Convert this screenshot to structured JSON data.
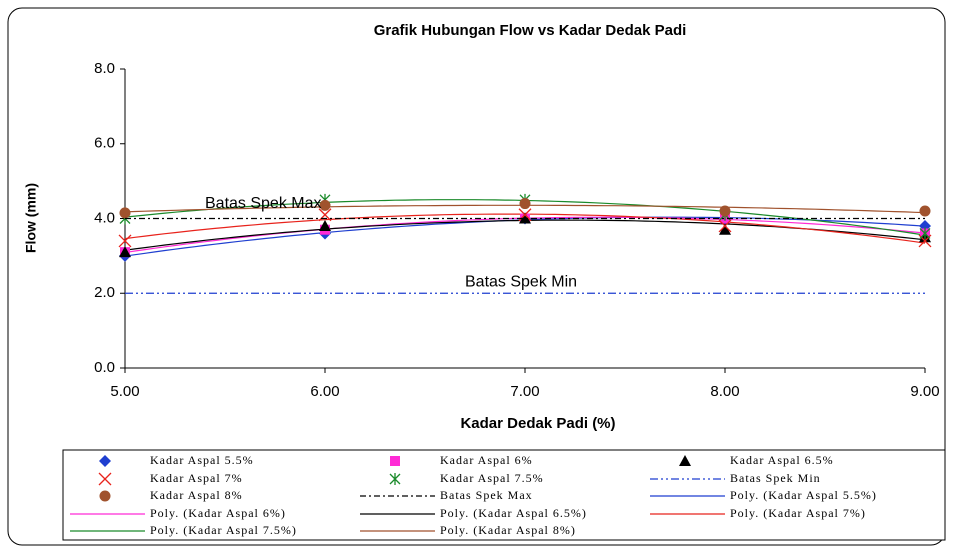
{
  "chart_data": {
    "type": "line",
    "title": "Grafik Hubungan Flow vs Kadar Dedak Padi",
    "xlabel": "Kadar Dedak Padi (%)",
    "ylabel": "Flow (mm)",
    "x": [
      5,
      6,
      7,
      8,
      9
    ],
    "xlim": [
      5,
      9
    ],
    "xticks": [
      {
        "value": 5,
        "label": "5.00"
      },
      {
        "value": 6,
        "label": "6.00"
      },
      {
        "value": 7,
        "label": "7.00"
      },
      {
        "value": 8,
        "label": "8.00"
      },
      {
        "value": 9,
        "label": "9.00"
      }
    ],
    "ylim": [
      0,
      8
    ],
    "yticks": [
      {
        "value": 0,
        "label": "0.0"
      },
      {
        "value": 2,
        "label": "2.0"
      },
      {
        "value": 4,
        "label": "4.0"
      },
      {
        "value": 6,
        "label": "6.0"
      },
      {
        "value": 8,
        "label": "8.0"
      }
    ],
    "grid": false,
    "annotations": [
      {
        "text": "Batas Spek Max",
        "x": 5.4,
        "y": 4.4
      },
      {
        "text": "Batas Spek Min",
        "x": 6.7,
        "y": 2.3
      }
    ],
    "series": [
      {
        "name": "Kadar Aspal 5.5%",
        "color": "#1f3fd0",
        "marker": "diamond",
        "values": [
          3.0,
          3.6,
          4.0,
          4.0,
          3.8
        ],
        "trendline": {
          "name": "Poly. (Kadar Aspal 5.5%)",
          "color": "#1f3fd0"
        }
      },
      {
        "name": "Kadar Aspal 6%",
        "color": "#ff2bd6",
        "marker": "square",
        "values": [
          3.1,
          3.7,
          4.0,
          4.0,
          3.6
        ],
        "trendline": {
          "name": "Poly. (Kadar Aspal 6%)",
          "color": "#ff2bd6"
        }
      },
      {
        "name": "Kadar Aspal 6.5%",
        "color": "#000000",
        "marker": "triangle",
        "values": [
          3.1,
          3.8,
          4.0,
          3.7,
          3.5
        ],
        "trendline": {
          "name": "Poly. (Kadar Aspal 6.5%)",
          "color": "#000000"
        }
      },
      {
        "name": "Kadar Aspal 7%",
        "color": "#e8231c",
        "marker": "x",
        "values": [
          3.4,
          4.1,
          4.1,
          3.8,
          3.4
        ],
        "trendline": {
          "name": "Poly. (Kadar Aspal 7%)",
          "color": "#e8231c"
        }
      },
      {
        "name": "Kadar Aspal 7.5%",
        "color": "#1a8a2a",
        "marker": "asterisk",
        "values": [
          4.0,
          4.5,
          4.5,
          4.1,
          3.6
        ],
        "trendline": {
          "name": "Poly. (Kadar Aspal 7.5%)",
          "color": "#1a8a2a"
        }
      },
      {
        "name": "Batas Spek Min",
        "color": "#1f3fd0",
        "dash": "dashdotdot",
        "values": [
          2,
          2,
          2,
          2,
          2
        ]
      },
      {
        "name": "Kadar Aspal 8%",
        "color": "#a0522d",
        "marker": "circle",
        "values": [
          4.15,
          4.35,
          4.4,
          4.2,
          4.2
        ],
        "trendline": {
          "name": "Poly. (Kadar Aspal 8%)",
          "color": "#a0522d"
        }
      },
      {
        "name": "Batas Spek Max",
        "color": "#000000",
        "dash": "dashdot",
        "values": [
          4,
          4,
          4,
          4,
          4
        ]
      }
    ]
  }
}
